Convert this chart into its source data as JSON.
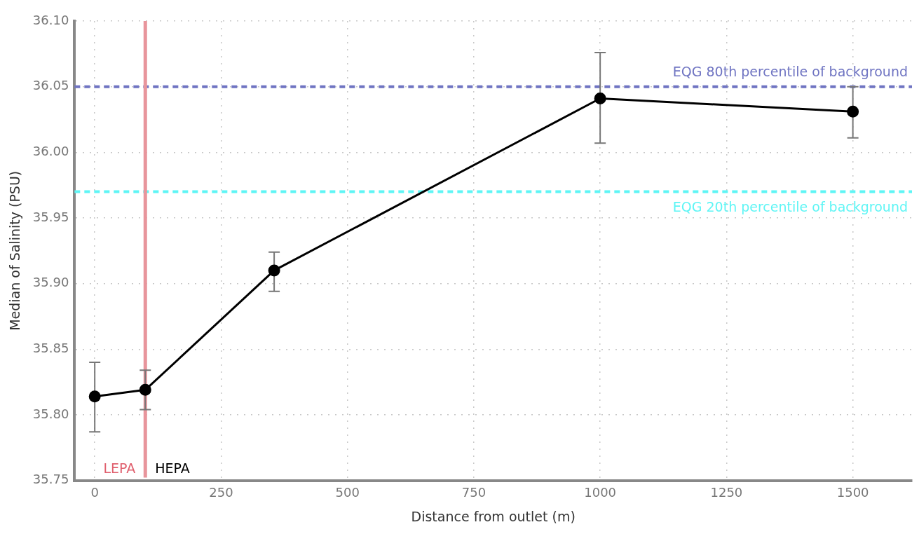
{
  "chart_data": {
    "type": "line",
    "xlabel": "Distance from outlet (m)",
    "ylabel": "Median of Salinity (PSU)",
    "x": [
      0,
      100,
      355,
      1000,
      1500
    ],
    "series": [
      {
        "color": "#000000",
        "values": [
          35.814,
          35.819,
          35.91,
          36.041,
          36.031
        ],
        "errors": [
          [
            35.787,
            35.84
          ],
          [
            35.804,
            35.834
          ],
          [
            35.894,
            35.924
          ],
          [
            36.007,
            36.076
          ],
          [
            36.011,
            36.05
          ]
        ]
      }
    ],
    "xlim": [
      -40,
      1617
    ],
    "xticks": [
      0,
      250,
      500,
      750,
      1000,
      1250,
      1500
    ],
    "ylim": [
      35.75,
      36.1
    ],
    "yticks": [
      {
        "value": 35.75,
        "label": "35.75"
      },
      {
        "value": 35.8,
        "label": "35.80"
      },
      {
        "value": 35.85,
        "label": "35.85"
      },
      {
        "value": 35.9,
        "label": "35.90"
      },
      {
        "value": 35.95,
        "label": "35.95"
      },
      {
        "value": 36,
        "label": "36.00"
      },
      {
        "value": 36.05,
        "label": "36.05"
      },
      {
        "value": 36.1,
        "label": "36.10"
      }
    ],
    "ref_lines": [
      {
        "axis": "y",
        "value": 36.05,
        "label": "EQG 80th percentile of background",
        "color": "#6f74c2",
        "line_style": "dashed"
      },
      {
        "axis": "y",
        "value": 35.97,
        "label": "EQG 20th percentile of background",
        "color": "#5ef5f5",
        "line_style": "dashed"
      },
      {
        "axis": "x",
        "value": 100,
        "color": "#e8959c",
        "line_style": "solid"
      }
    ],
    "annotations": [
      "LEPA",
      "HEPA"
    ],
    "grid": true,
    "marker": "circle",
    "line_style": "solid",
    "legend": false
  }
}
